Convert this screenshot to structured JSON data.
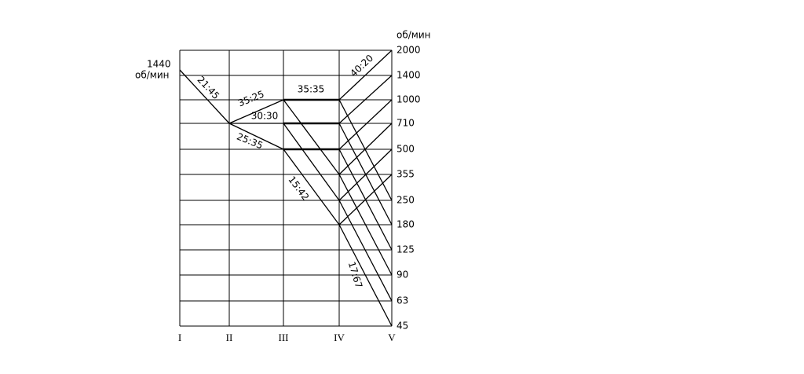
{
  "unit_top": "об/мин",
  "input": {
    "speed": "1440",
    "unit": "об/мин"
  },
  "speeds": [
    "2000",
    "1400",
    "1000",
    "710",
    "500",
    "355",
    "250",
    "180",
    "125",
    "90",
    "63",
    "45"
  ],
  "shafts": [
    "I",
    "II",
    "III",
    "IV",
    "V"
  ],
  "ratios": [
    "21:45",
    "35:25",
    "30:30",
    "25:35",
    "35:35",
    "15:42",
    "40:20",
    "17:67"
  ]
}
